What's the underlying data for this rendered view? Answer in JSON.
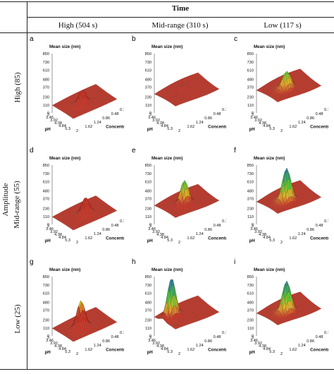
{
  "figure": {
    "header": {
      "time_label": "Time",
      "columns": [
        "High (504 s)",
        "Mid-range (310 s)",
        "Low (117 s)"
      ],
      "amplitude_label": "Amplitude",
      "rows": [
        "High (85)",
        "Mid-range (55)",
        "Low (25)"
      ]
    },
    "colors": {
      "surface_low": "#c8392a",
      "surface_mid": "#e3b52b",
      "surface_green": "#4fc83a",
      "surface_high": "#2a66c8",
      "grid_line": "#000000"
    }
  },
  "chart_data": [
    {
      "type": "surface",
      "panel": "a",
      "zlabel": "Mean size (nm)",
      "ylabel": "pH",
      "xlabel": "Concentration (mg/ml)",
      "z_ticks": [
        "0",
        "110",
        "230",
        "370",
        "480",
        "610",
        "730",
        "850"
      ],
      "y_ticks": [
        "3",
        "3.46",
        "3.92",
        "4.38",
        "4.84",
        "5.3"
      ],
      "x_ticks": [
        "2",
        "1.62",
        "1.24",
        "0.86",
        "0.48",
        "0.1"
      ],
      "peaks": [
        {
          "ph": 4.38,
          "conc": 1.24,
          "height": 330
        }
      ],
      "base": 120
    },
    {
      "type": "surface",
      "panel": "b",
      "zlabel": "Mean size (nm)",
      "ylabel": "pH",
      "xlabel": "Concentration (mg/ml)",
      "z_ticks": [
        "0",
        "110",
        "230",
        "370",
        "480",
        "610",
        "730",
        "850"
      ],
      "y_ticks": [
        "3",
        "3.46",
        "3.92",
        "4.38",
        "4.84",
        "5.3"
      ],
      "x_ticks": [
        "2",
        "1.62",
        "1.24",
        "0.86",
        "0.48",
        "0.1"
      ],
      "peaks": [
        {
          "ph": 3.92,
          "conc": 1.1,
          "height": 320
        }
      ],
      "base": 300
    },
    {
      "type": "surface",
      "panel": "c",
      "zlabel": "Mean size (nm)",
      "ylabel": "pH",
      "xlabel": "Concentration (mg/ml)",
      "z_ticks": [
        "0",
        "110",
        "230",
        "370",
        "480",
        "610",
        "730",
        "850"
      ],
      "y_ticks": [
        "3",
        "3.46",
        "3.92",
        "4.38",
        "4.84",
        "5.3"
      ],
      "x_ticks": [
        "2",
        "1.62",
        "1.24",
        "0.86",
        "0.48",
        "0.1"
      ],
      "peaks": [
        {
          "ph": 4.38,
          "conc": 1.24,
          "height": 610
        }
      ],
      "base": 360
    },
    {
      "type": "surface",
      "panel": "d",
      "zlabel": "Mean size (nm)",
      "ylabel": "pH",
      "xlabel": "Concentration (mg/ml)",
      "z_ticks": [
        "0",
        "110",
        "230",
        "370",
        "480",
        "610",
        "730",
        "850"
      ],
      "y_ticks": [
        "3",
        "3.46",
        "3.92",
        "4.38",
        "4.84",
        "5.3"
      ],
      "x_ticks": [
        "2",
        "1.62",
        "1.24",
        "0.86",
        "0.48",
        "0.1"
      ],
      "peaks": [
        {
          "ph": 4.38,
          "conc": 1.1,
          "height": 370
        }
      ],
      "base": 120
    },
    {
      "type": "surface",
      "panel": "e",
      "zlabel": "Mean size (nm)",
      "ylabel": "pH",
      "xlabel": "Concentration (mg/ml)",
      "z_ticks": [
        "0",
        "110",
        "230",
        "370",
        "480",
        "610",
        "730",
        "850"
      ],
      "y_ticks": [
        "3",
        "3.46",
        "3.92",
        "4.38",
        "4.84",
        "5.3"
      ],
      "x_ticks": [
        "2",
        "1.62",
        "1.24",
        "0.86",
        "0.48",
        "0.1"
      ],
      "peaks": [
        {
          "ph": 4.38,
          "conc": 1.24,
          "height": 640
        }
      ],
      "base": 300
    },
    {
      "type": "surface",
      "panel": "f",
      "zlabel": "Mean size (nm)",
      "ylabel": "pH",
      "xlabel": "Concentration (mg/ml)",
      "z_ticks": [
        "0",
        "110",
        "230",
        "370",
        "480",
        "610",
        "730",
        "850"
      ],
      "y_ticks": [
        "3",
        "3.46",
        "3.92",
        "4.38",
        "4.84",
        "5.3"
      ],
      "x_ticks": [
        "2",
        "1.62",
        "1.24",
        "0.86",
        "0.48",
        "0.1"
      ],
      "peaks": [
        {
          "ph": 4.38,
          "conc": 1.24,
          "height": 820
        }
      ],
      "base": 360
    },
    {
      "type": "surface",
      "panel": "g",
      "zlabel": "Mean size (nm)",
      "ylabel": "pH",
      "xlabel": "Concentration (mg/ml)",
      "z_ticks": [
        "0",
        "110",
        "230",
        "370",
        "480",
        "610",
        "730",
        "850"
      ],
      "y_ticks": [
        "3",
        "3.46",
        "3.92",
        "4.38",
        "4.84",
        "5.3"
      ],
      "x_ticks": [
        "2",
        "1.62",
        "1.24",
        "0.86",
        "0.48",
        "0.1"
      ],
      "peaks": [
        {
          "ph": 4.38,
          "conc": 1.3,
          "height": 520
        }
      ],
      "base": 120
    },
    {
      "type": "surface",
      "panel": "h",
      "zlabel": "Mean size (nm)",
      "ylabel": "pH",
      "xlabel": "Concentration (mg/ml)",
      "z_ticks": [
        "0",
        "110",
        "230",
        "370",
        "480",
        "610",
        "730",
        "850"
      ],
      "y_ticks": [
        "3",
        "3.46",
        "3.92",
        "4.38",
        "4.84",
        "5.3"
      ],
      "x_ticks": [
        "2",
        "1.62",
        "1.24",
        "0.86",
        "0.48",
        "0.1"
      ],
      "peaks": [
        {
          "ph": 3.92,
          "conc": 1.62,
          "height": 850
        }
      ],
      "base": 300
    },
    {
      "type": "surface",
      "panel": "i",
      "zlabel": "Mean size (nm)",
      "ylabel": "pH",
      "xlabel": "Concentration (mg/ml)",
      "z_ticks": [
        "0",
        "110",
        "230",
        "370",
        "480",
        "610",
        "730",
        "850"
      ],
      "y_ticks": [
        "3",
        "3.46",
        "3.92",
        "4.38",
        "4.84",
        "5.3"
      ],
      "x_ticks": [
        "2",
        "1.62",
        "1.24",
        "0.86",
        "0.48",
        "0.1"
      ],
      "peaks": [
        {
          "ph": 4.38,
          "conc": 1.24,
          "height": 800
        }
      ],
      "base": 360
    }
  ]
}
